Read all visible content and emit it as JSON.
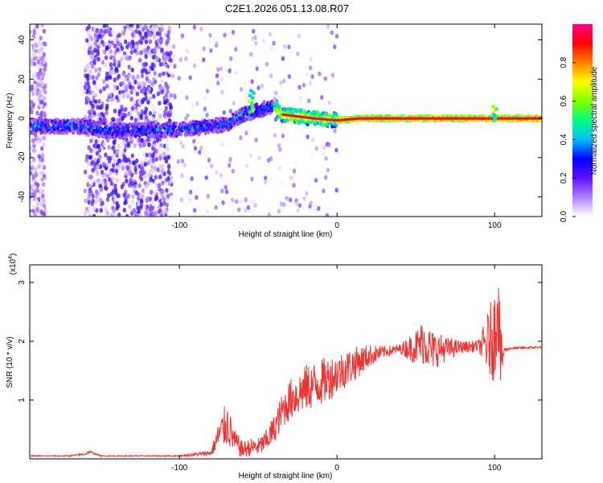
{
  "figure_title": "C2E1.2026.051.13.08.R07",
  "chart_data": [
    {
      "type": "heatmap",
      "xlabel": "Height of straight line (km)",
      "ylabel": "Frequency (Hz)",
      "xlim": [
        -195,
        130
      ],
      "ylim": [
        -50,
        48
      ],
      "x_ticks": [
        -100,
        0,
        100
      ],
      "y_ticks": [
        -40,
        -20,
        0,
        20,
        40
      ],
      "x_tick_labels": [
        "-100",
        "0",
        "100"
      ],
      "y_tick_labels": [
        "-40",
        "-20",
        "0",
        "20",
        "40"
      ],
      "colorbar": {
        "label": "Normalized spectral amplitude",
        "range": [
          0,
          1
        ],
        "ticks": [
          0.0,
          0.2,
          0.4,
          0.6,
          0.8
        ],
        "tick_labels": [
          "0.0",
          "0.2",
          "0.4",
          "0.6",
          "0.8"
        ],
        "colors": [
          "#ffffff",
          "#b080ff",
          "#6010ff",
          "#0000ff",
          "#00c0ff",
          "#00ff80",
          "#80ff00",
          "#ffff00",
          "#ff8000",
          "#ff0000",
          "#ff0090"
        ]
      },
      "ridge_path": [
        [
          -195,
          -4
        ],
        [
          -160,
          -4
        ],
        [
          -150,
          -6
        ],
        [
          -110,
          -6
        ],
        [
          -90,
          -5
        ],
        [
          -70,
          -3
        ],
        [
          -60,
          2
        ],
        [
          -50,
          4
        ],
        [
          -42,
          6
        ],
        [
          -35,
          2
        ],
        [
          -25,
          1
        ],
        [
          -15,
          0
        ],
        [
          0,
          -1
        ],
        [
          15,
          0
        ],
        [
          60,
          0
        ],
        [
          100,
          0
        ],
        [
          130,
          0
        ]
      ],
      "noise_regions": [
        {
          "x_range": [
            -195,
            -185
          ],
          "density": "sparse"
        },
        {
          "x_range": [
            -160,
            -105
          ],
          "density": "dense"
        },
        {
          "x_range": [
            -120,
            0
          ],
          "density": "sparse"
        }
      ],
      "spikes": [
        {
          "x": -54,
          "y_max": 14
        },
        {
          "x": 100,
          "y_max": 7
        }
      ]
    },
    {
      "type": "line",
      "xlabel": "Height of straight line (km)",
      "ylabel": "SNR (10 * v/v)",
      "y_multiplier_label": "(x10",
      "y_multiplier_exponent": "4",
      "y_multiplier_close": ")",
      "xlim": [
        -195,
        130
      ],
      "ylim": [
        0,
        3.3
      ],
      "x_ticks": [
        -100,
        0,
        100
      ],
      "y_ticks": [
        1,
        2,
        3
      ],
      "x_tick_labels": [
        "-100",
        "0",
        "100"
      ],
      "y_tick_labels": [
        "1",
        "2",
        "3"
      ],
      "series": [
        {
          "name": "SNR",
          "color": "#ee3333",
          "x": [
            -195,
            -170,
            -160,
            -157,
            -150,
            -100,
            -80,
            -75,
            -70,
            -65,
            -60,
            -55,
            -50,
            -45,
            -40,
            -35,
            -30,
            -20,
            -10,
            0,
            10,
            20,
            30,
            40,
            50,
            55,
            60,
            70,
            80,
            90,
            95,
            100,
            102,
            104,
            106,
            110,
            130
          ],
          "values": [
            0.05,
            0.05,
            0.08,
            0.12,
            0.05,
            0.05,
            0.1,
            0.4,
            0.6,
            0.3,
            0.15,
            0.2,
            0.2,
            0.3,
            0.5,
            0.8,
            1.0,
            1.2,
            1.3,
            1.45,
            1.6,
            1.75,
            1.82,
            1.87,
            1.9,
            2.0,
            1.85,
            1.87,
            1.9,
            1.92,
            1.95,
            2.1,
            2.8,
            1.6,
            1.85,
            1.88,
            1.9
          ],
          "noise_amplitude": [
            0.01,
            0.01,
            0.02,
            0.02,
            0.01,
            0.01,
            0.05,
            0.25,
            0.4,
            0.2,
            0.15,
            0.15,
            0.15,
            0.2,
            0.25,
            0.3,
            0.35,
            0.4,
            0.4,
            0.35,
            0.3,
            0.2,
            0.1,
            0.08,
            0.3,
            0.4,
            0.35,
            0.2,
            0.1,
            0.1,
            0.5,
            0.8,
            0.9,
            0.6,
            0.05,
            0.02,
            0.02
          ]
        }
      ]
    }
  ]
}
